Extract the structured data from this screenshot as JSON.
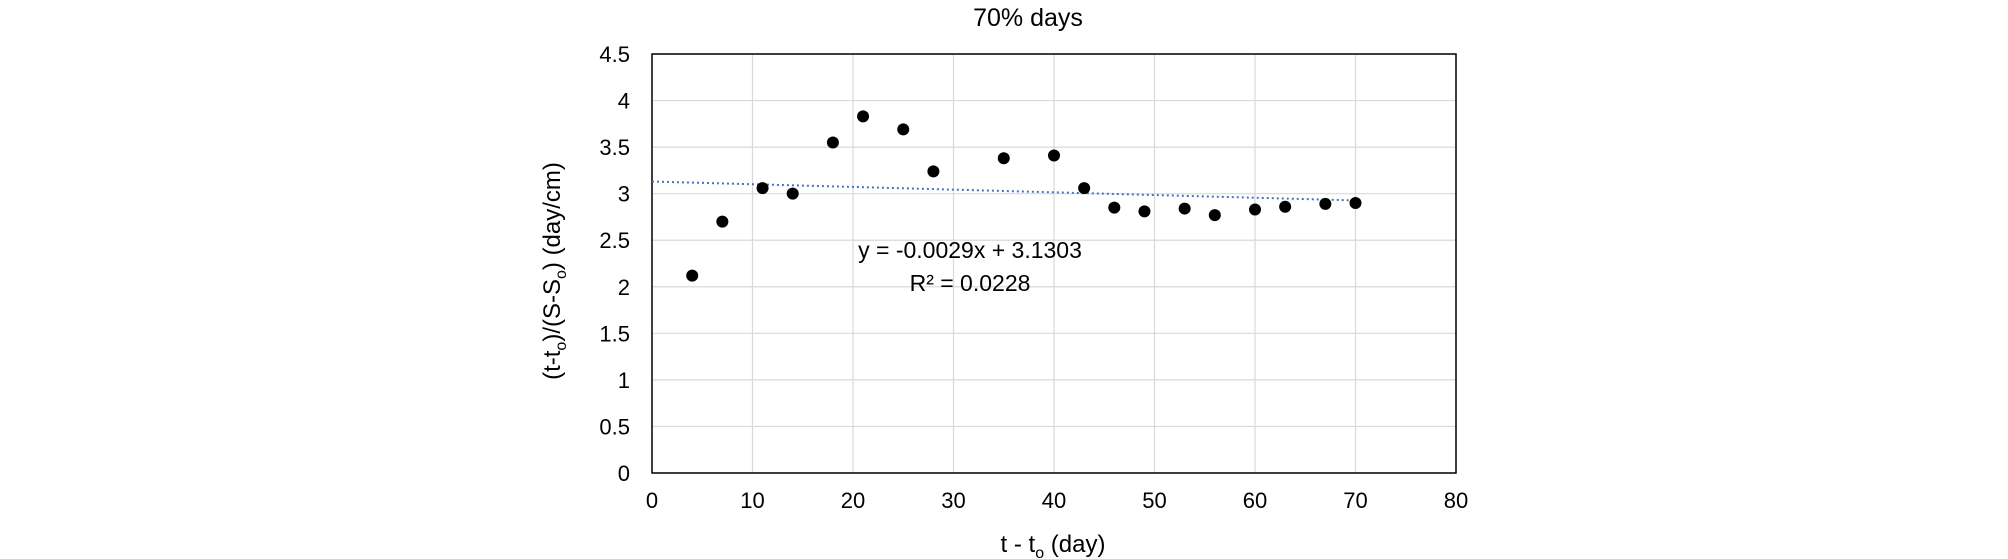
{
  "chart_data": {
    "type": "scatter",
    "title": "70% days",
    "xlabel": {
      "base": "t - t",
      "sub": "o",
      "suffix": " (day)"
    },
    "ylabel": {
      "p1": "(t-t",
      "s1": "o",
      "p2": ")/(S-S",
      "s2": "o",
      "p3": ") (day/cm)"
    },
    "xlim": [
      0,
      80
    ],
    "ylim": [
      0,
      4.5
    ],
    "xticks": [
      0,
      10,
      20,
      30,
      40,
      50,
      60,
      70,
      80
    ],
    "yticks": [
      0,
      0.5,
      1,
      1.5,
      2,
      2.5,
      3,
      3.5,
      4,
      4.5
    ],
    "xtick_labels": [
      "0",
      "10",
      "20",
      "30",
      "40",
      "50",
      "60",
      "70",
      "80"
    ],
    "ytick_labels": [
      "0",
      "0.5",
      "1",
      "1.5",
      "2",
      "2.5",
      "3",
      "3.5",
      "4",
      "4.5"
    ],
    "grid": true,
    "legend": "none",
    "series": [
      {
        "x": [
          4,
          7,
          11,
          14,
          18,
          21,
          25,
          28,
          35,
          40,
          43,
          46,
          49,
          53,
          56,
          60,
          63,
          67,
          70
        ],
        "y": [
          2.12,
          2.7,
          3.06,
          3.0,
          3.55,
          3.83,
          3.69,
          3.24,
          3.38,
          3.41,
          3.06,
          2.85,
          2.81,
          2.84,
          2.77,
          2.83,
          2.86,
          2.89,
          2.9
        ],
        "color": "#000000"
      }
    ],
    "trendline": {
      "slope": -0.0029,
      "intercept": 3.1303,
      "x_range": [
        0,
        70
      ],
      "color": "#4472C4",
      "style": "dotted"
    },
    "annotations": {
      "equation": "y = -0.0029x + 3.1303",
      "r2": "R² = 0.0228"
    }
  }
}
